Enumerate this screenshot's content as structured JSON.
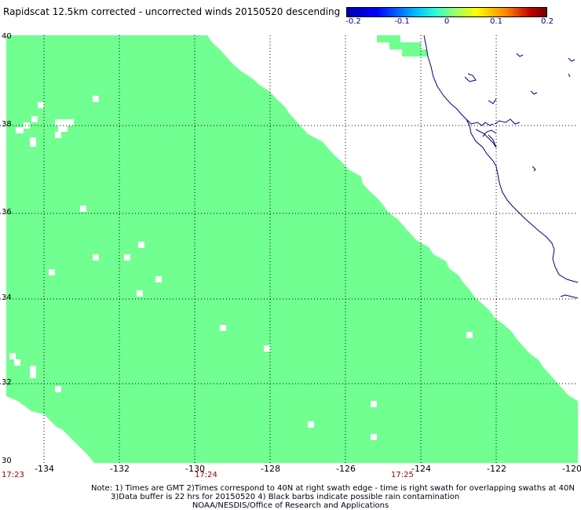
{
  "title": "Rapidscat 12.5km corrected - uncorrected winds 20150520 descending",
  "colorbar": {
    "ticks": [
      "-0.2",
      "-0.1",
      "0",
      "0.1",
      "0.2"
    ],
    "range": [
      -0.2,
      0.2
    ]
  },
  "colors": {
    "swath_fill": "#70ff90",
    "coastline": "#000080",
    "grid": "#000000",
    "time_labels": "#a00000"
  },
  "axes": {
    "longitude_ticks": [
      "-134",
      "-132",
      "-130",
      "-128",
      "-126",
      "-124",
      "-122",
      "-120"
    ],
    "latitude_ticks": [
      "40",
      "38",
      "36",
      "34",
      "32",
      "30"
    ],
    "lon_range": [
      -135,
      -120
    ],
    "lat_range": [
      30,
      40
    ],
    "grid": true
  },
  "time_labels": [
    "17:23",
    "17:24",
    "17:25"
  ],
  "notes": {
    "line1": "Note: 1) Times are GMT 2)Times correspond to 40N at right swath edge - time is right swath for overlapping swaths at 40N",
    "line2": "3)Data buffer is 22 hrs for 20150520 4) Black barbs indicate possible rain contamination",
    "line3": "NOAA/NESDIS/Office of Research and Applications"
  }
}
